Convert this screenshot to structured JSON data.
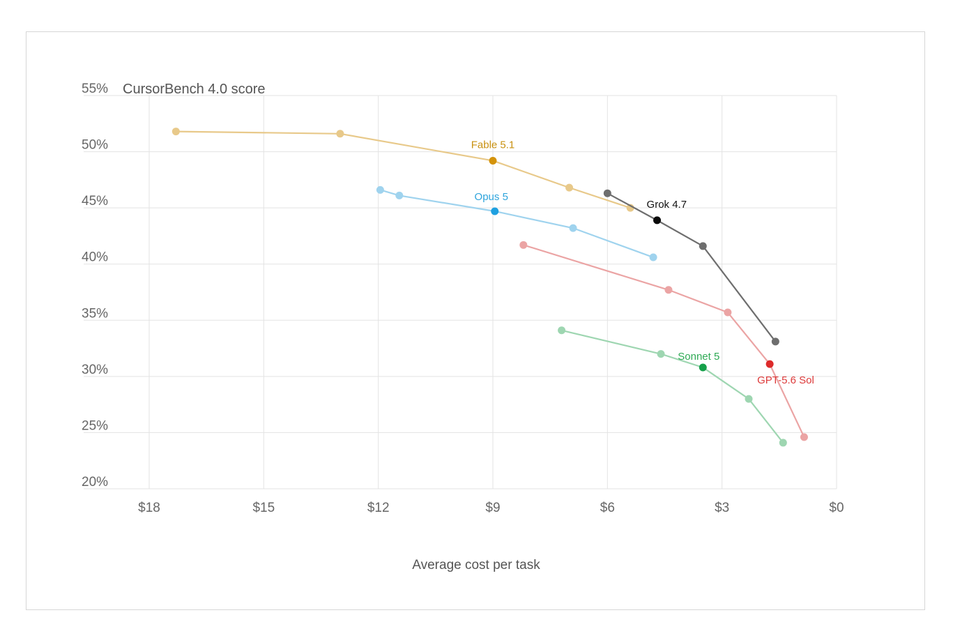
{
  "chart_data": {
    "type": "line",
    "title": "CursorBench 4.0 score",
    "xlabel": "Average cost per task",
    "ylabel": "",
    "x_ticks": [
      "$18",
      "$15",
      "$12",
      "$9",
      "$6",
      "$3",
      "$0"
    ],
    "x_tick_values": [
      18,
      15,
      12,
      9,
      6,
      3,
      0
    ],
    "xlim": [
      18,
      0
    ],
    "x_reversed": true,
    "y_ticks": [
      "20%",
      "25%",
      "30%",
      "35%",
      "40%",
      "45%",
      "50%",
      "55%"
    ],
    "y_tick_values": [
      20,
      25,
      30,
      35,
      40,
      45,
      50,
      55
    ],
    "ylim": [
      20,
      55
    ],
    "grid": true,
    "series": [
      {
        "name": "Fable 5.1",
        "line_color": "#e8c98a",
        "point_color": "#e8c98a",
        "highlight_color": "#d4930a",
        "highlight_index": 2,
        "label_color": "#c8900f",
        "x": [
          17.3,
          13.0,
          9.0,
          7.0,
          5.4
        ],
        "y": [
          51.8,
          51.6,
          49.2,
          46.8,
          45.0
        ]
      },
      {
        "name": "Opus 5",
        "line_color": "#9fd3ee",
        "point_color": "#9fd3ee",
        "highlight_color": "#1fa0e0",
        "highlight_index": 2,
        "label_color": "#2ea4dc",
        "x": [
          11.95,
          11.45,
          8.95,
          6.9,
          4.8
        ],
        "y": [
          46.6,
          46.1,
          44.7,
          43.2,
          40.6
        ]
      },
      {
        "name": "Grok 4.7",
        "line_color": "#6e6e6e",
        "point_color": "#6e6e6e",
        "highlight_color": "#0a0a0a",
        "highlight_index": 1,
        "label_color": "#111111",
        "x": [
          6.0,
          4.7,
          3.5,
          1.6
        ],
        "y": [
          46.3,
          43.9,
          41.6,
          33.1
        ]
      },
      {
        "name": "GPT-5.6 Sol",
        "line_color": "#eba4a4",
        "point_color": "#eba4a4",
        "highlight_color": "#dd2a2a",
        "highlight_index": 3,
        "label_color": "#dd3a3a",
        "x": [
          8.2,
          4.4,
          2.85,
          1.75,
          0.85
        ],
        "y": [
          41.7,
          37.7,
          35.7,
          31.1,
          24.6
        ]
      },
      {
        "name": "Sonnet 5",
        "line_color": "#9ed6b1",
        "point_color": "#9ed6b1",
        "highlight_color": "#15a04a",
        "highlight_index": 2,
        "label_color": "#2faa55",
        "x": [
          7.2,
          4.6,
          3.5,
          2.3,
          1.4
        ],
        "y": [
          34.1,
          32.0,
          30.8,
          28.0,
          24.1
        ]
      }
    ]
  }
}
